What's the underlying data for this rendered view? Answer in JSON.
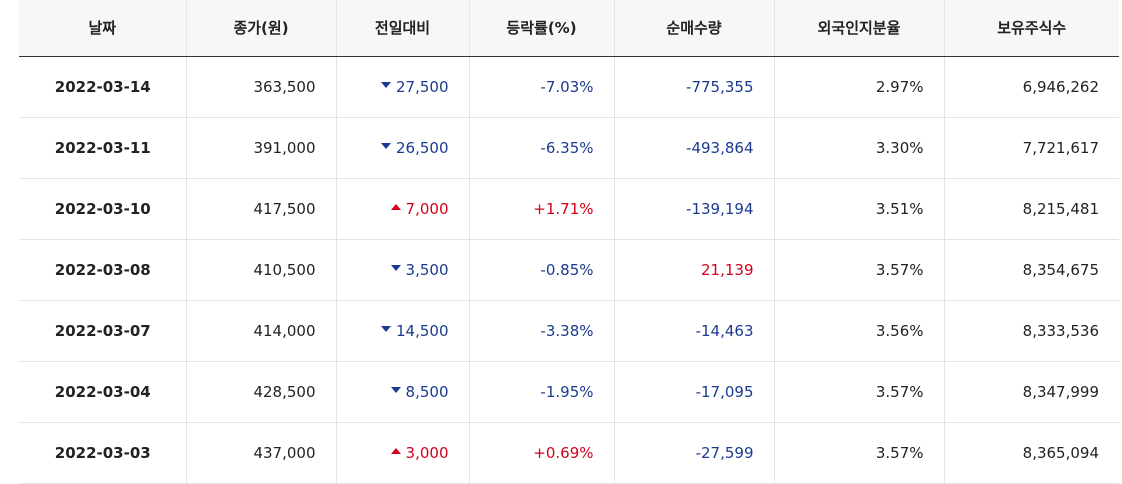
{
  "colors": {
    "down": "#1a3a8f",
    "up": "#d0021b",
    "header_bg": "#f7f7f7"
  },
  "headers": [
    "날짜",
    "종가(원)",
    "전일대비",
    "등락률(%)",
    "순매수량",
    "외국인지분율",
    "보유주식수"
  ],
  "rows": [
    {
      "date": "2022-03-14",
      "close": "363,500",
      "change": "27,500",
      "change_dir": "down",
      "rate": "-7.03%",
      "rate_dir": "down",
      "net": "-775,355",
      "net_dir": "down",
      "foreign_ratio": "2.97%",
      "shares": "6,946,262"
    },
    {
      "date": "2022-03-11",
      "close": "391,000",
      "change": "26,500",
      "change_dir": "down",
      "rate": "-6.35%",
      "rate_dir": "down",
      "net": "-493,864",
      "net_dir": "down",
      "foreign_ratio": "3.30%",
      "shares": "7,721,617"
    },
    {
      "date": "2022-03-10",
      "close": "417,500",
      "change": "7,000",
      "change_dir": "up",
      "rate": "+1.71%",
      "rate_dir": "up",
      "net": "-139,194",
      "net_dir": "down",
      "foreign_ratio": "3.51%",
      "shares": "8,215,481"
    },
    {
      "date": "2022-03-08",
      "close": "410,500",
      "change": "3,500",
      "change_dir": "down",
      "rate": "-0.85%",
      "rate_dir": "down",
      "net": "21,139",
      "net_dir": "up",
      "foreign_ratio": "3.57%",
      "shares": "8,354,675"
    },
    {
      "date": "2022-03-07",
      "close": "414,000",
      "change": "14,500",
      "change_dir": "down",
      "rate": "-3.38%",
      "rate_dir": "down",
      "net": "-14,463",
      "net_dir": "down",
      "foreign_ratio": "3.56%",
      "shares": "8,333,536"
    },
    {
      "date": "2022-03-04",
      "close": "428,500",
      "change": "8,500",
      "change_dir": "down",
      "rate": "-1.95%",
      "rate_dir": "down",
      "net": "-17,095",
      "net_dir": "down",
      "foreign_ratio": "3.57%",
      "shares": "8,347,999"
    },
    {
      "date": "2022-03-03",
      "close": "437,000",
      "change": "3,000",
      "change_dir": "up",
      "rate": "+0.69%",
      "rate_dir": "up",
      "net": "-27,599",
      "net_dir": "down",
      "foreign_ratio": "3.57%",
      "shares": "8,365,094"
    }
  ]
}
